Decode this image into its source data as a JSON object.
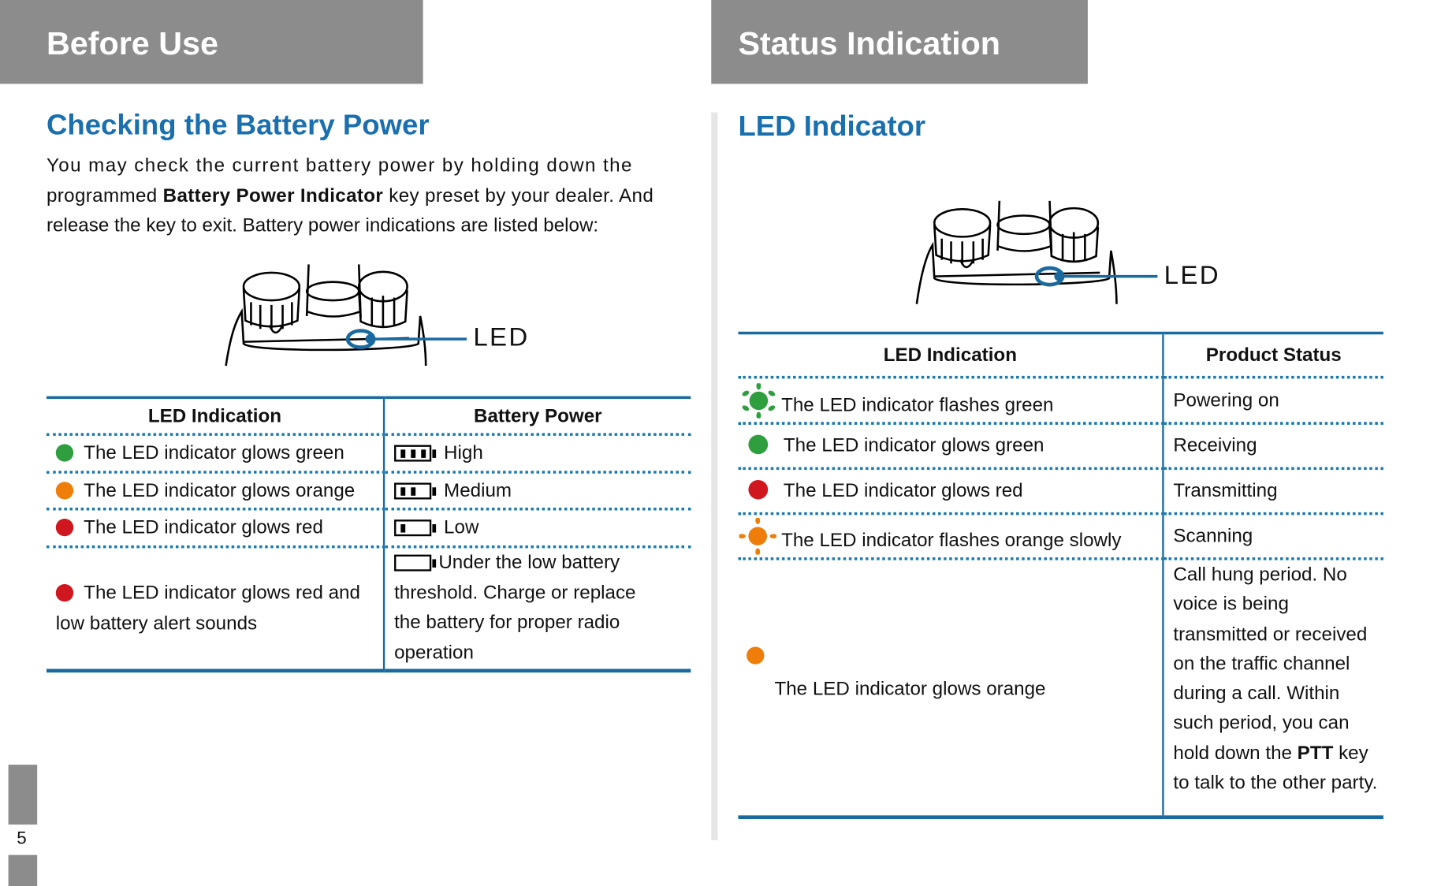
{
  "left": {
    "header": "Before Use",
    "title": "Checking the Battery Power",
    "paragraph": {
      "line1": "You may check the current battery power by holding down the",
      "line2_pre": "programmed ",
      "line2_bold": "Battery Power Indicator",
      "line2_post": " key preset by your dealer. And",
      "line3": "release the key to exit. Battery power indications are listed below:"
    },
    "illustration_label": "LED",
    "table": {
      "headers": [
        "LED Indication",
        "Battery Power"
      ],
      "rows": [
        {
          "led": "The LED indicator glows green",
          "dot_color": "#2e9e3e",
          "battery_icon": "battery-3-bars",
          "power": "High"
        },
        {
          "led": "The LED indicator glows orange",
          "dot_color": "#ef7d0a",
          "battery_icon": "battery-2-bars",
          "power": "Medium"
        },
        {
          "led": "The LED indicator glows red",
          "dot_color": "#d0161e",
          "battery_icon": "battery-1-bar",
          "power": "Low"
        },
        {
          "led": "The LED indicator glows red and low battery alert sounds",
          "dot_color": "#d0161e",
          "battery_icon": "battery-empty",
          "power": "Under the low battery threshold. Charge or replace the battery for proper radio operation"
        }
      ]
    }
  },
  "right": {
    "header": "Status Indication",
    "title": "LED Indicator",
    "illustration_label": "LED",
    "table": {
      "headers": [
        "LED Indication",
        "Product Status"
      ],
      "rows": [
        {
          "icon": "flashing-green",
          "color": "#2e9e3e",
          "led": "The LED indicator flashes green",
          "status": "Powering on"
        },
        {
          "icon": "solid-green",
          "color": "#2e9e3e",
          "led": "The LED indicator glows green",
          "status": "Receiving"
        },
        {
          "icon": "solid-red",
          "color": "#d0161e",
          "led": "The LED indicator glows red",
          "status": "Transmitting"
        },
        {
          "icon": "flashing-orange",
          "color": "#ef7d0a",
          "led": "The LED indicator flashes orange slowly",
          "status": "Scanning"
        },
        {
          "icon": "solid-orange",
          "color": "#ef7d0a",
          "led": "The LED indicator glows orange",
          "status_pre": "Call hung period. No voice is being transmitted or received on the traffic channel during a call. Within such period, you can hold down the ",
          "status_bold": "PTT",
          "status_post": " key to talk to the other party."
        }
      ]
    }
  },
  "page_number": "5",
  "colors": {
    "header_bg": "#8c8c8c",
    "accent_blue": "#1a6faf",
    "green": "#2e9e3e",
    "orange": "#ef7d0a",
    "red": "#d0161e"
  }
}
